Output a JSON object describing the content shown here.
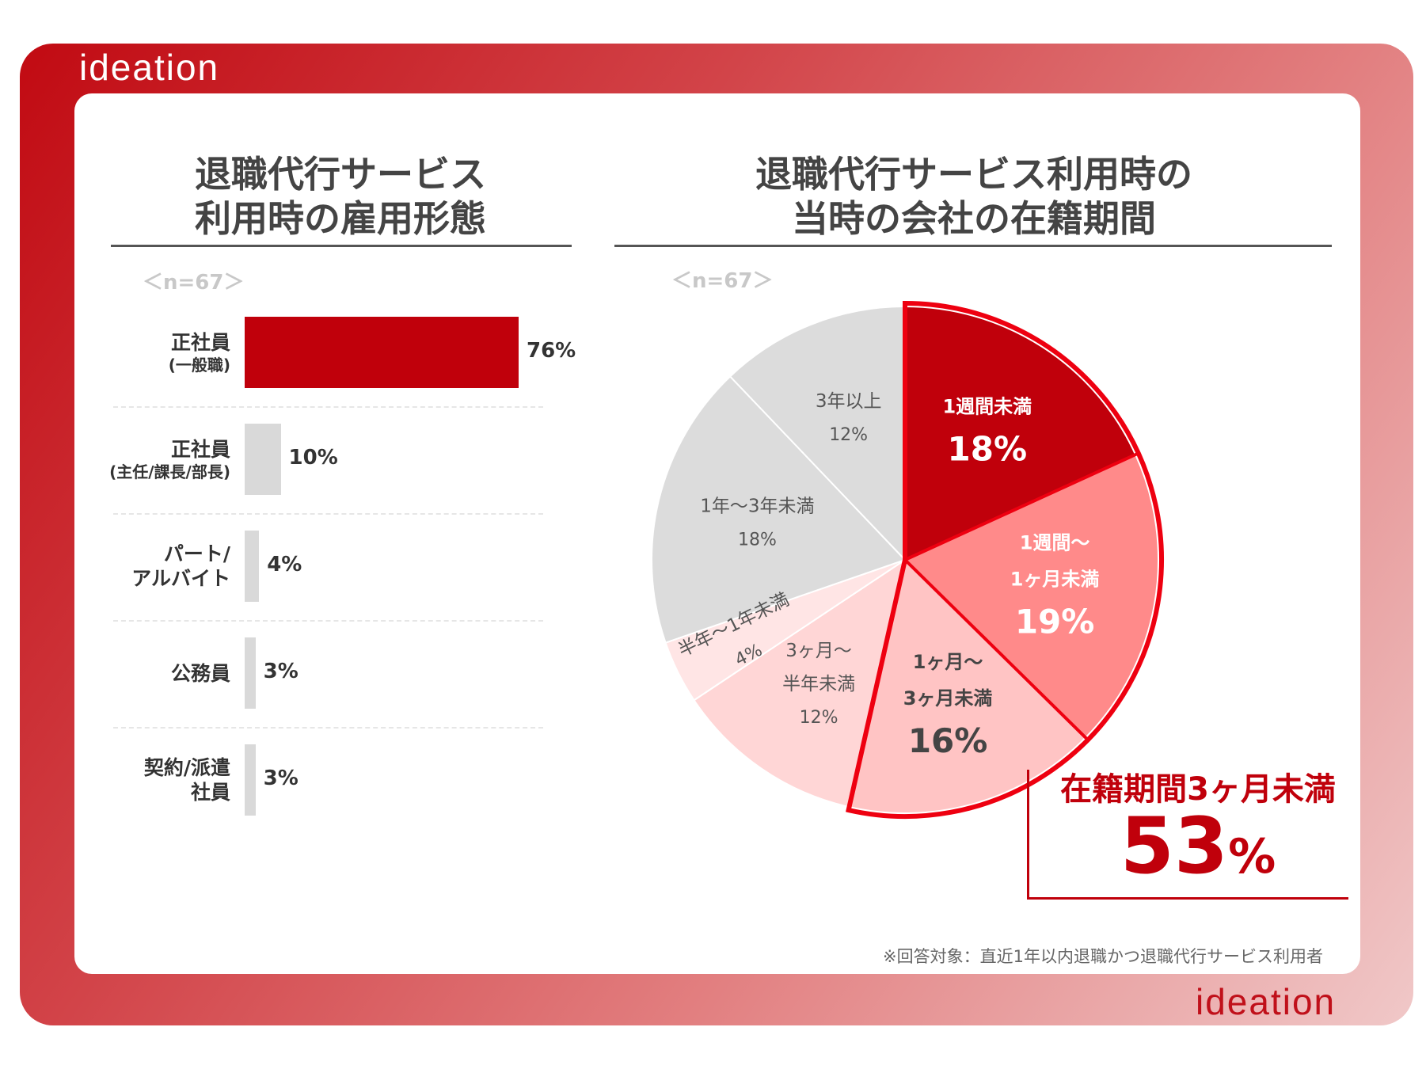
{
  "brand": {
    "logo": "ideation"
  },
  "left_title": "退職代行サービス\n利用時の雇用形態",
  "right_title": "退職代行サービス利用時の\n当時の会社の在籍期間",
  "left_n": "＜n=67＞",
  "right_n": "＜n=67＞",
  "callout": {
    "label": "在籍期間3ヶ月未満",
    "value": "53",
    "unit": "%"
  },
  "note": "※回答対象：直近1年以内退職かつ退職代行サービス利用者",
  "colors": {
    "primary": "#c0000b",
    "grey": "#d9d9d9",
    "light_red": "#ff8a8a",
    "pale_red": "#ffc4c4",
    "paler_red": "#ffd6d6",
    "palest_red": "#ffe5e5"
  },
  "chart_data": [
    {
      "type": "bar",
      "orientation": "horizontal",
      "title": "退職代行サービス利用時の雇用形態",
      "n": "n=67",
      "categories": [
        {
          "label": "正社員",
          "sub": "(一般職)",
          "value": 76,
          "display": "76%",
          "color": "#c0000b"
        },
        {
          "label": "正社員",
          "sub": "(主任/課長/部長)",
          "value": 10,
          "display": "10%",
          "color": "#d9d9d9"
        },
        {
          "label": "パート/\nアルバイト",
          "sub": "",
          "value": 4,
          "display": "4%",
          "color": "#d9d9d9"
        },
        {
          "label": "公務員",
          "sub": "",
          "value": 3,
          "display": "3%",
          "color": "#d9d9d9"
        },
        {
          "label": "契約/派遣\n社員",
          "sub": "",
          "value": 3,
          "display": "3%",
          "color": "#d9d9d9"
        }
      ],
      "xlim": [
        0,
        76
      ]
    },
    {
      "type": "pie",
      "title": "退職代行サービス利用時の当時の会社の在籍期間",
      "n": "n=67",
      "slices": [
        {
          "label": [
            "1週間未満"
          ],
          "value": 18,
          "display": "18%",
          "color": "#c0000b",
          "text_color": "#ffffff",
          "emph": true
        },
        {
          "label": [
            "1週間〜",
            "1ヶ月未満"
          ],
          "value": 19,
          "display": "19%",
          "color": "#ff8a8a",
          "text_color": "#ffffff",
          "emph": true
        },
        {
          "label": [
            "1ヶ月〜",
            "3ヶ月未満"
          ],
          "value": 16,
          "display": "16%",
          "color": "#ffc4c4",
          "text_color": "#444444",
          "emph": true
        },
        {
          "label": [
            "3ヶ月〜",
            "半年未満"
          ],
          "value": 12,
          "display": "12%",
          "color": "#ffd6d6",
          "text_color": "#555555",
          "emph": false
        },
        {
          "label": [
            "半年〜1年未満"
          ],
          "value": 4,
          "display": "4%",
          "color": "#ffe5e5",
          "text_color": "#555555",
          "emph": false
        },
        {
          "label": [
            "1年〜3年未満"
          ],
          "value": 18,
          "display": "18%",
          "color": "#dcdcdc",
          "text_color": "#555555",
          "emph": false
        },
        {
          "label": [
            "3年以上"
          ],
          "value": 12,
          "display": "12%",
          "color": "#dcdcdc",
          "text_color": "#555555",
          "emph": false
        }
      ],
      "highlight": {
        "slices": [
          0,
          1,
          2
        ],
        "total": 53
      }
    }
  ]
}
